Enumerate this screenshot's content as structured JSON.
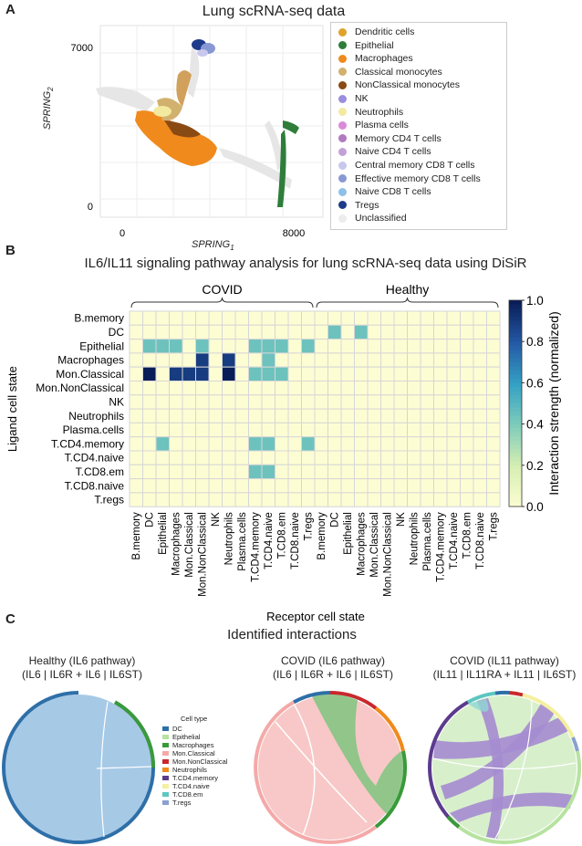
{
  "panel_a": {
    "letter": "A",
    "title": "Lung scRNA-seq data",
    "xlabel_main": "SPRING",
    "xlabel_sub": "1",
    "ylabel_main": "SPRING",
    "ylabel_sub": "2",
    "xticks": [
      "0",
      "8000"
    ],
    "yticks": [
      "7000",
      "0"
    ]
  },
  "legend": [
    {
      "label": "Dendritic cells",
      "color": "#e0a22a"
    },
    {
      "label": "Epithelial",
      "color": "#2e7d3a"
    },
    {
      "label": "Macrophages",
      "color": "#f08a1c"
    },
    {
      "label": "Classical monocytes",
      "color": "#d2b06e"
    },
    {
      "label": "NonClassical monocytes",
      "color": "#8a4a14"
    },
    {
      "label": "NK",
      "color": "#9a8ee0"
    },
    {
      "label": "Neutrophils",
      "color": "#f2eaa0"
    },
    {
      "label": "Plasma cells",
      "color": "#d98ad8"
    },
    {
      "label": "Memory CD4 T cells",
      "color": "#b07ac0"
    },
    {
      "label": "Naive CD4 T cells",
      "color": "#c4a0d8"
    },
    {
      "label": "Central memory CD8 T cells",
      "color": "#c8c8ee"
    },
    {
      "label": "Effective memory CD8 T cells",
      "color": "#8898d4"
    },
    {
      "label": "Naive CD8 T cells",
      "color": "#8ec0e8"
    },
    {
      "label": "Tregs",
      "color": "#1e3a8a"
    },
    {
      "label": "Unclassified",
      "color": "#ececec"
    }
  ],
  "panel_b": {
    "letter": "B",
    "title": "IL6/IL11 signaling pathway analysis for lung scRNA-seq data using DiSiR",
    "group_left": "COVID",
    "group_right": "Healthy",
    "ylabel": "Ligand cell state",
    "xlabel": "Receptor cell state",
    "colorbar_label": "Interaction strength (normalized)",
    "colorbar_ticks": [
      "1.0",
      "0.8",
      "0.6",
      "0.4",
      "0.2",
      "0.0"
    ]
  },
  "chart_data": {
    "type": "heatmap",
    "title": "IL6/IL11 signaling pathway analysis for lung scRNA-seq data using DiSiR",
    "xlabel": "Receptor cell state",
    "ylabel": "Ligand cell state",
    "rows": [
      "B.memory",
      "DC",
      "Epithelial",
      "Macrophages",
      "Mon.Classical",
      "Mon.NonClassical",
      "NK",
      "Neutrophils",
      "Plasma.cells",
      "T.CD4.memory",
      "T.CD4.naive",
      "T.CD8.em",
      "T.CD8.naive",
      "T.regs"
    ],
    "columns": [
      "B.memory",
      "DC",
      "Epithelial",
      "Macrophages",
      "Mon.Classical",
      "Mon.NonClassical",
      "NK",
      "Neutrophils",
      "Plasma.cells",
      "T.CD4.memory",
      "T.CD4.naive",
      "T.CD8.em",
      "T.CD8.naive",
      "T.regs",
      "B.memory",
      "DC",
      "Epithelial",
      "Macrophages",
      "Mon.Classical",
      "Mon.NonClassical",
      "NK",
      "Neutrophils",
      "Plasma.cells",
      "T.CD4.memory",
      "T.CD4.naive",
      "T.CD8.em",
      "T.CD8.naive",
      "T.regs"
    ],
    "column_groups": [
      {
        "name": "COVID",
        "start": 0,
        "end": 13
      },
      {
        "name": "Healthy",
        "start": 14,
        "end": 27
      }
    ],
    "colorbar_range": [
      0.0,
      1.0
    ],
    "values": [
      [
        0,
        0,
        0,
        0,
        0,
        0,
        0,
        0,
        0,
        0,
        0,
        0,
        0,
        0,
        0,
        0,
        0,
        0,
        0,
        0,
        0,
        0,
        0,
        0,
        0,
        0,
        0,
        0
      ],
      [
        0,
        0,
        0,
        0,
        0,
        0,
        0,
        0,
        0,
        0,
        0,
        0,
        0,
        0,
        0,
        0.45,
        0,
        0.45,
        0,
        0,
        0,
        0,
        0,
        0,
        0,
        0,
        0,
        0
      ],
      [
        0,
        0.45,
        0.45,
        0.45,
        0,
        0.45,
        0,
        0,
        0,
        0.45,
        0.45,
        0.45,
        0,
        0.45,
        0,
        0,
        0,
        0,
        0,
        0,
        0,
        0,
        0,
        0,
        0,
        0,
        0,
        0
      ],
      [
        0,
        0,
        0,
        0,
        0,
        0.9,
        0,
        0.9,
        0,
        0,
        0.45,
        0,
        0,
        0,
        0,
        0,
        0,
        0,
        0,
        0,
        0,
        0,
        0,
        0,
        0,
        0,
        0,
        0
      ],
      [
        0,
        1.0,
        0,
        0.9,
        0.9,
        0.9,
        0,
        1.0,
        0,
        0.45,
        0.45,
        0.45,
        0,
        0,
        0,
        0,
        0,
        0,
        0,
        0,
        0,
        0,
        0,
        0,
        0,
        0,
        0,
        0
      ],
      [
        0,
        0,
        0,
        0,
        0,
        0,
        0,
        0,
        0,
        0,
        0,
        0,
        0,
        0,
        0,
        0,
        0,
        0,
        0,
        0,
        0,
        0,
        0,
        0,
        0,
        0,
        0,
        0
      ],
      [
        0,
        0,
        0,
        0,
        0,
        0,
        0,
        0,
        0,
        0,
        0,
        0,
        0,
        0,
        0,
        0,
        0,
        0,
        0,
        0,
        0,
        0,
        0,
        0,
        0,
        0,
        0,
        0
      ],
      [
        0,
        0,
        0,
        0,
        0,
        0,
        0,
        0,
        0,
        0,
        0,
        0,
        0,
        0,
        0,
        0,
        0,
        0,
        0,
        0,
        0,
        0,
        0,
        0,
        0,
        0,
        0,
        0
      ],
      [
        0,
        0,
        0,
        0,
        0,
        0,
        0,
        0,
        0,
        0,
        0,
        0,
        0,
        0,
        0,
        0,
        0,
        0,
        0,
        0,
        0,
        0,
        0,
        0,
        0,
        0,
        0,
        0
      ],
      [
        0,
        0,
        0.45,
        0,
        0,
        0,
        0,
        0,
        0,
        0.45,
        0.45,
        0,
        0,
        0.45,
        0,
        0,
        0,
        0,
        0,
        0,
        0,
        0,
        0,
        0,
        0,
        0,
        0,
        0
      ],
      [
        0,
        0,
        0,
        0,
        0,
        0,
        0,
        0,
        0,
        0,
        0,
        0,
        0,
        0,
        0,
        0,
        0,
        0,
        0,
        0,
        0,
        0,
        0,
        0,
        0,
        0,
        0,
        0
      ],
      [
        0,
        0,
        0,
        0,
        0,
        0,
        0,
        0,
        0,
        0.45,
        0.45,
        0,
        0,
        0,
        0,
        0,
        0,
        0,
        0,
        0,
        0,
        0,
        0,
        0,
        0,
        0,
        0,
        0
      ],
      [
        0,
        0,
        0,
        0,
        0,
        0,
        0,
        0,
        0,
        0,
        0,
        0,
        0,
        0,
        0,
        0,
        0,
        0,
        0,
        0,
        0,
        0,
        0,
        0,
        0,
        0,
        0,
        0
      ],
      [
        0,
        0,
        0,
        0,
        0,
        0,
        0,
        0,
        0,
        0,
        0,
        0,
        0,
        0,
        0,
        0,
        0,
        0,
        0,
        0,
        0,
        0,
        0,
        0,
        0,
        0,
        0,
        0
      ]
    ]
  },
  "panel_c": {
    "letter": "C",
    "title": "Identified interactions",
    "chords": [
      {
        "title_line1": "Healthy (IL6 pathway)",
        "title_line2": "(IL6 | IL6R + IL6 | IL6ST)"
      },
      {
        "title_line1": "COVID (IL6 pathway)",
        "title_line2": "(IL6 | IL6R + IL6 | IL6ST)"
      },
      {
        "title_line1": "COVID (IL11 pathway)",
        "title_line2": "(IL11 | IL11RA + IL11 | IL6ST)"
      }
    ],
    "celltype_title": "Cell type",
    "celltypes": [
      {
        "label": "DC",
        "color": "#2e6fa8"
      },
      {
        "label": "Epithelial",
        "color": "#b6e3a0"
      },
      {
        "label": "Macrophages",
        "color": "#3a9a3a"
      },
      {
        "label": "Mon.Classical",
        "color": "#f4a9a8"
      },
      {
        "label": "Mon.NonClassical",
        "color": "#c8282c"
      },
      {
        "label": "Neutrophils",
        "color": "#f08a1c"
      },
      {
        "label": "T.CD4.memory",
        "color": "#5b3b8c"
      },
      {
        "label": "T.CD4.naive",
        "color": "#f4f0a0"
      },
      {
        "label": "T.CD8.em",
        "color": "#5cc6c0"
      },
      {
        "label": "T.regs",
        "color": "#8aa0d0"
      }
    ]
  }
}
